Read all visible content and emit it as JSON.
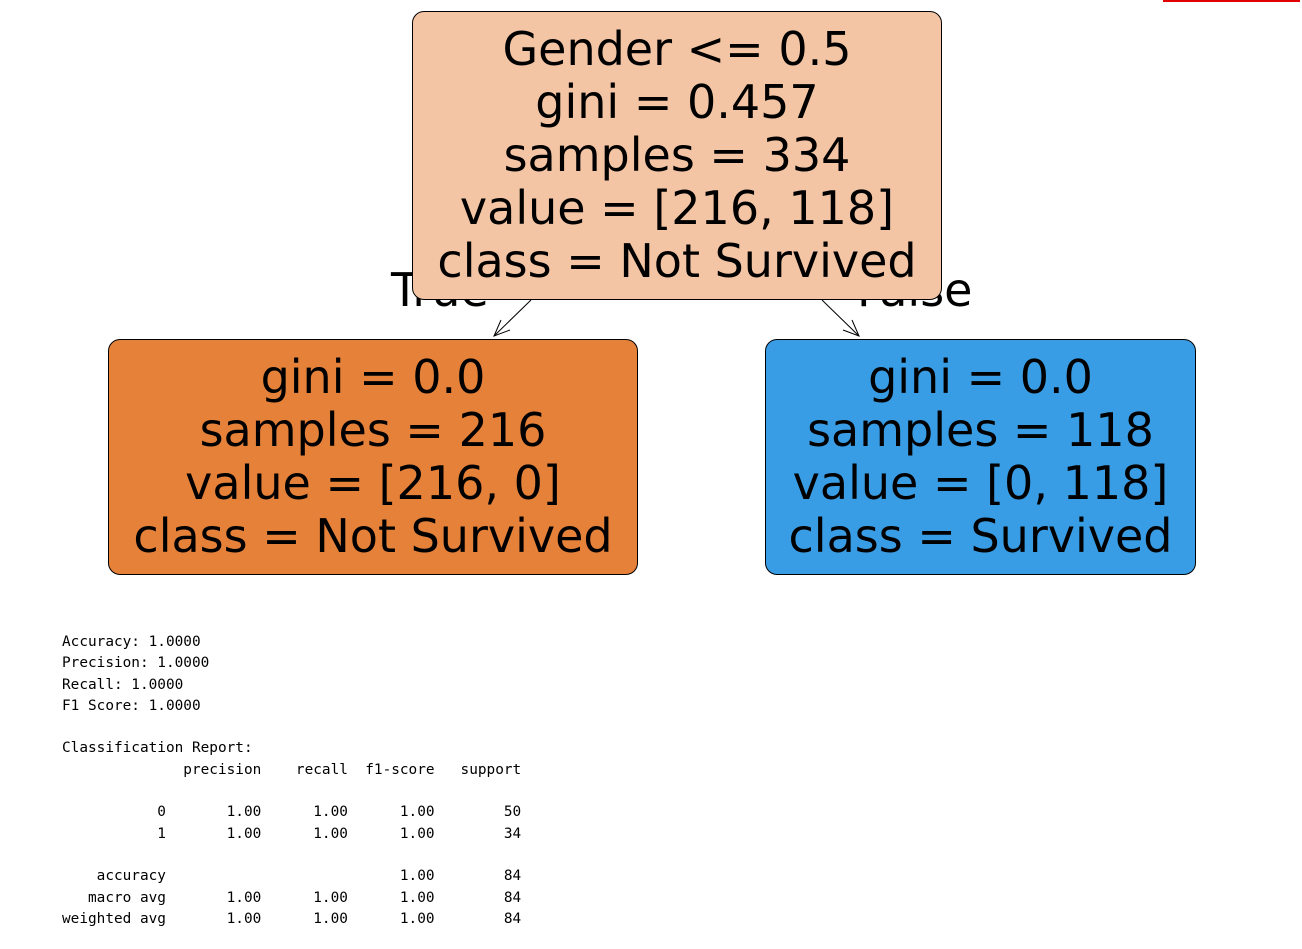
{
  "tree": {
    "edge_labels": {
      "true": "True",
      "false": "False"
    },
    "root": {
      "lines": [
        "Gender <= 0.5",
        "gini = 0.457",
        "samples = 334",
        "value = [216, 118]",
        "class = Not Survived"
      ],
      "color": "#f3c5a5"
    },
    "left": {
      "lines": [
        "gini = 0.0",
        "samples = 216",
        "value = [216, 0]",
        "class = Not Survived"
      ],
      "color": "#e58139"
    },
    "right": {
      "lines": [
        "gini = 0.0",
        "samples = 118",
        "value = [0, 118]",
        "class = Survived"
      ],
      "color": "#399de5"
    }
  },
  "output": {
    "metrics": [
      "Accuracy: 1.0000",
      "Precision: 1.0000",
      "Recall: 1.0000",
      "F1 Score: 1.0000"
    ],
    "report_title": "Classification Report:",
    "report_header": "              precision    recall  f1-score   support",
    "report_rows": [
      "",
      "           0       1.00      1.00      1.00        50",
      "           1       1.00      1.00      1.00        34",
      "",
      "    accuracy                           1.00        84",
      "   macro avg       1.00      1.00      1.00        84",
      "weighted avg       1.00      1.00      1.00        84"
    ]
  }
}
